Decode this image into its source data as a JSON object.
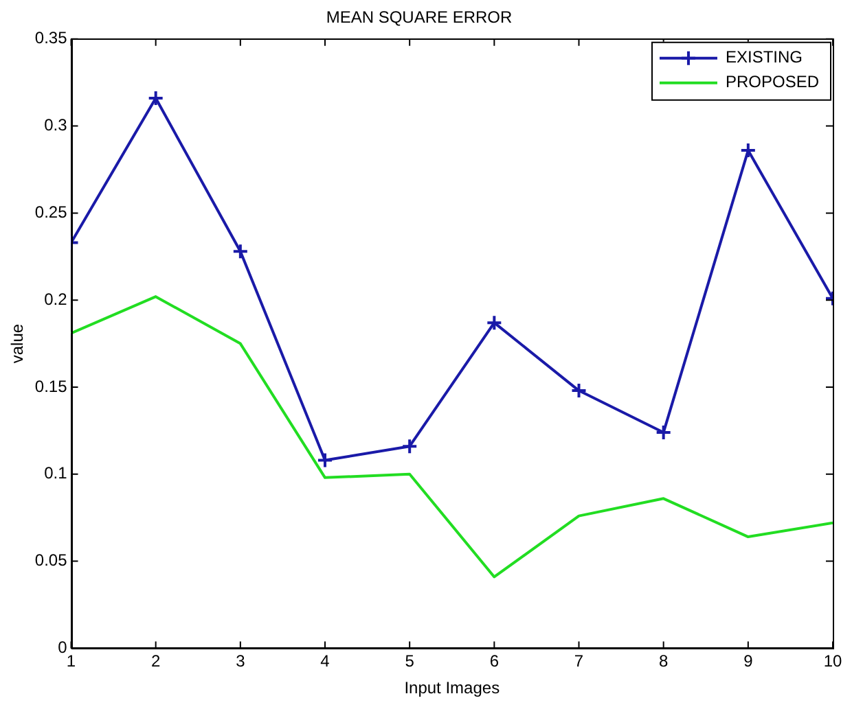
{
  "chart_data": {
    "type": "line",
    "title": "MEAN SQUARE ERROR",
    "xlabel": "Input Images",
    "ylabel": "value",
    "x": [
      1,
      2,
      3,
      4,
      5,
      6,
      7,
      8,
      9,
      10
    ],
    "series": [
      {
        "name": "EXISTING",
        "color": "#1a1aa8",
        "marker": "cross",
        "values": [
          0.233,
          0.316,
          0.228,
          0.108,
          0.116,
          0.187,
          0.148,
          0.124,
          0.286,
          0.201
        ]
      },
      {
        "name": "PROPOSED",
        "color": "#22dd22",
        "marker": "none",
        "values": [
          0.181,
          0.202,
          0.175,
          0.098,
          0.1,
          0.041,
          0.076,
          0.086,
          0.064,
          0.072
        ]
      }
    ],
    "xlim": [
      1,
      10
    ],
    "xticks": [
      1,
      2,
      3,
      4,
      5,
      6,
      7,
      8,
      9,
      10
    ],
    "ylim": [
      0,
      0.35
    ],
    "yticks": [
      0,
      0.05,
      0.1,
      0.15,
      0.2,
      0.25,
      0.3,
      0.35
    ],
    "grid": false,
    "legend": "top right",
    "line_style": "solid"
  }
}
